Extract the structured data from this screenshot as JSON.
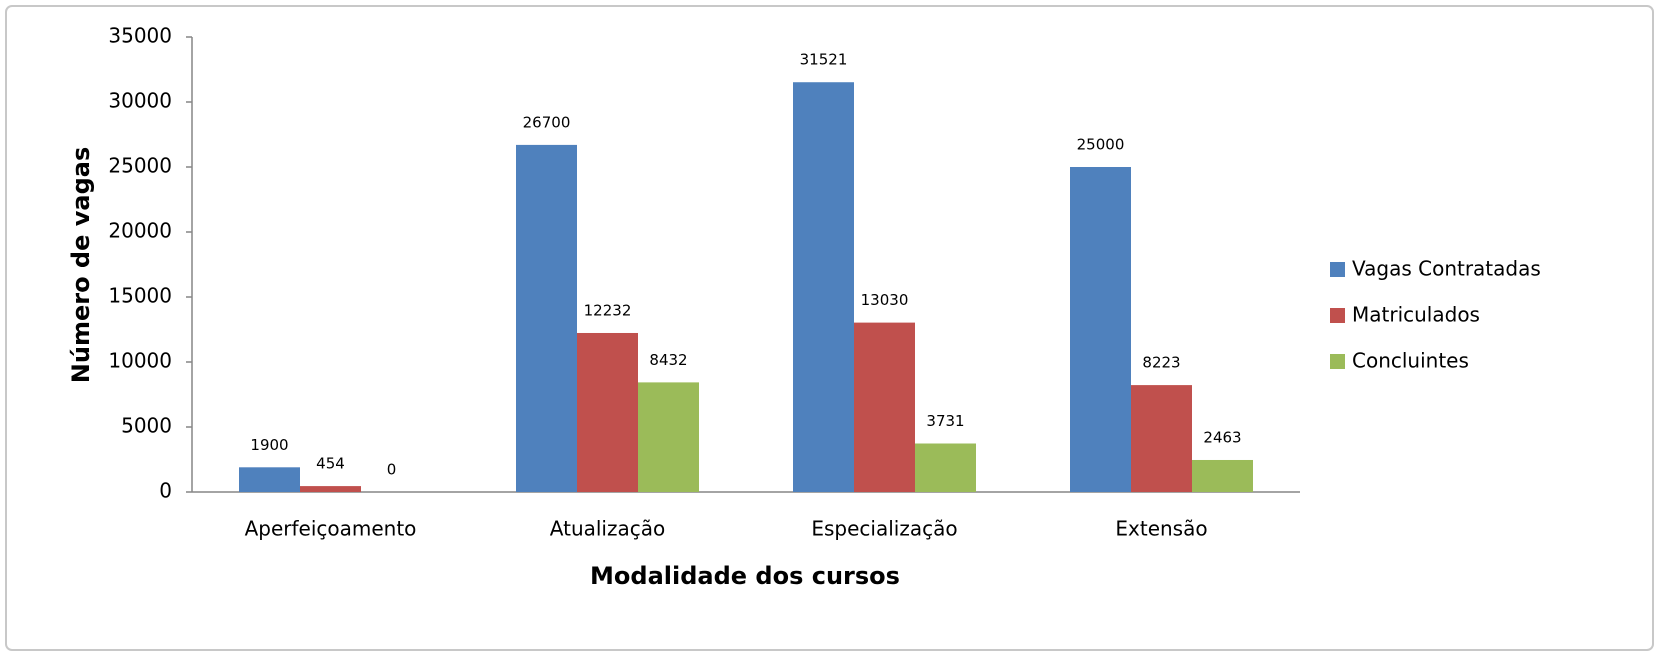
{
  "chart_data": {
    "type": "bar",
    "categories": [
      "Aperfeiçoamento",
      "Atualização",
      "Especialização",
      "Extensão"
    ],
    "series": [
      {
        "name": "Vagas Contratadas",
        "color": "#4f81bd",
        "values": [
          1900,
          26700,
          31521,
          25000
        ]
      },
      {
        "name": "Matriculados",
        "color": "#c0504d",
        "values": [
          454,
          12232,
          13030,
          8223
        ]
      },
      {
        "name": "Concluintes",
        "color": "#9bbb59",
        "values": [
          0,
          8432,
          3731,
          2463
        ]
      }
    ],
    "ylabel": "Número de vagas",
    "xlabel": "Modalidade dos cursos",
    "ylim": [
      0,
      35000
    ],
    "yticks": [
      0,
      5000,
      10000,
      15000,
      20000,
      25000,
      30000,
      35000
    ],
    "grid": false,
    "legend": "right"
  }
}
